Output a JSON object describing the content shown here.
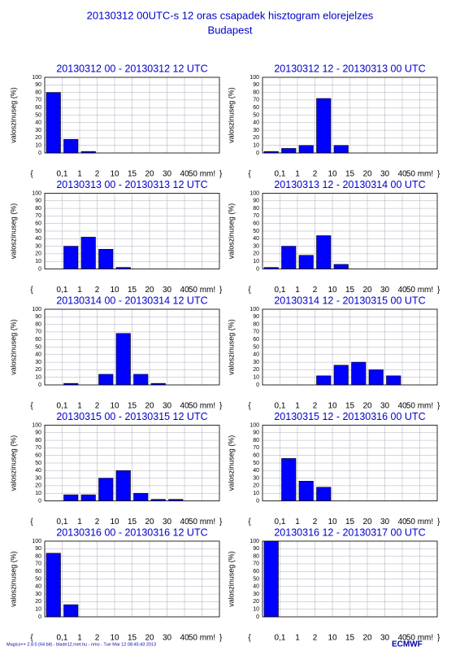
{
  "title": "20130312 00UTC-s 12 oras csapadek hisztogram elorejelzes",
  "subtitle": "Budapest",
  "footer": "Magics++ 2.8.0 (64 bit) - blade12.met.hu - nmo - Tue Mar 12 08:45:43 2013",
  "logo": "ECMWF",
  "chart_data": [
    {
      "type": "histogram",
      "title": "20130312 00 - 20130312 12 UTC",
      "y_label": "valoszinuseg (%)",
      "color": "#0000ff",
      "grid": true,
      "bins": [
        "{",
        "0,1",
        "1",
        "2",
        "10",
        "15",
        "20",
        "30",
        "40",
        "50 mm!",
        "}"
      ],
      "values": [
        80,
        18,
        2,
        0,
        0,
        0,
        0,
        0,
        0,
        0
      ],
      "ylim": [
        0,
        100
      ],
      "yticks": [
        0,
        10,
        20,
        30,
        40,
        50,
        60,
        70,
        80,
        90,
        100
      ]
    },
    {
      "type": "histogram",
      "title": "20130312 12 - 20130313 00 UTC",
      "y_label": "valoszinuseg (%)",
      "color": "#0000ff",
      "grid": true,
      "bins": [
        "{",
        "0,1",
        "1",
        "2",
        "10",
        "15",
        "20",
        "30",
        "40",
        "50 mm!",
        "}"
      ],
      "values": [
        2,
        6,
        10,
        72,
        10,
        0,
        0,
        0,
        0,
        0
      ],
      "ylim": [
        0,
        100
      ],
      "yticks": [
        0,
        10,
        20,
        30,
        40,
        50,
        60,
        70,
        80,
        90,
        100
      ]
    },
    {
      "type": "histogram",
      "title": "20130313 00 - 20130313 12 UTC",
      "y_label": "valoszinuseg (%)",
      "color": "#0000ff",
      "grid": true,
      "bins": [
        "{",
        "0,1",
        "1",
        "2",
        "10",
        "15",
        "20",
        "30",
        "40",
        "50 mm!",
        "}"
      ],
      "values": [
        0,
        30,
        42,
        26,
        2,
        0,
        0,
        0,
        0,
        0
      ],
      "ylim": [
        0,
        100
      ],
      "yticks": [
        0,
        10,
        20,
        30,
        40,
        50,
        60,
        70,
        80,
        90,
        100
      ]
    },
    {
      "type": "histogram",
      "title": "20130313 12 - 20130314 00 UTC",
      "y_label": "valoszinuseg (%)",
      "color": "#0000ff",
      "grid": true,
      "bins": [
        "{",
        "0,1",
        "1",
        "2",
        "10",
        "15",
        "20",
        "30",
        "40",
        "50 mm!",
        "}"
      ],
      "values": [
        2,
        30,
        18,
        44,
        6,
        0,
        0,
        0,
        0,
        0
      ],
      "ylim": [
        0,
        100
      ],
      "yticks": [
        0,
        10,
        20,
        30,
        40,
        50,
        60,
        70,
        80,
        90,
        100
      ]
    },
    {
      "type": "histogram",
      "title": "20130314 00 - 20130314 12 UTC",
      "y_label": "valoszinuseg (%)",
      "color": "#0000ff",
      "grid": true,
      "bins": [
        "{",
        "0,1",
        "1",
        "2",
        "10",
        "15",
        "20",
        "30",
        "40",
        "50 mm!",
        "}"
      ],
      "values": [
        0,
        2,
        0,
        14,
        68,
        14,
        2,
        0,
        0,
        0
      ],
      "ylim": [
        0,
        100
      ],
      "yticks": [
        0,
        10,
        20,
        30,
        40,
        50,
        60,
        70,
        80,
        90,
        100
      ]
    },
    {
      "type": "histogram",
      "title": "20130314 12 - 20130315 00 UTC",
      "y_label": "valoszinuseg (%)",
      "color": "#0000ff",
      "grid": true,
      "bins": [
        "{",
        "0,1",
        "1",
        "2",
        "10",
        "15",
        "20",
        "30",
        "40",
        "50 mm!",
        "}"
      ],
      "values": [
        0,
        0,
        0,
        12,
        26,
        30,
        20,
        12,
        0,
        0
      ],
      "ylim": [
        0,
        100
      ],
      "yticks": [
        0,
        10,
        20,
        30,
        40,
        50,
        60,
        70,
        80,
        90,
        100
      ]
    },
    {
      "type": "histogram",
      "title": "20130315 00 - 20130315 12 UTC",
      "y_label": "valoszinuseg (%)",
      "color": "#0000ff",
      "grid": true,
      "bins": [
        "{",
        "0,1",
        "1",
        "2",
        "10",
        "15",
        "20",
        "30",
        "40",
        "50 mm!",
        "}"
      ],
      "values": [
        0,
        8,
        8,
        30,
        40,
        10,
        2,
        2,
        0,
        0
      ],
      "ylim": [
        0,
        100
      ],
      "yticks": [
        0,
        10,
        20,
        30,
        40,
        50,
        60,
        70,
        80,
        90,
        100
      ]
    },
    {
      "type": "histogram",
      "title": "20130315 12 - 20130316 00 UTC",
      "y_label": "valoszinuseg (%)",
      "color": "#0000ff",
      "grid": true,
      "bins": [
        "{",
        "0,1",
        "1",
        "2",
        "10",
        "15",
        "20",
        "30",
        "40",
        "50 mm!",
        "}"
      ],
      "values": [
        0,
        56,
        26,
        18,
        0,
        0,
        0,
        0,
        0,
        0
      ],
      "ylim": [
        0,
        100
      ],
      "yticks": [
        0,
        10,
        20,
        30,
        40,
        50,
        60,
        70,
        80,
        90,
        100
      ]
    },
    {
      "type": "histogram",
      "title": "20130316 00 - 20130316 12 UTC",
      "y_label": "valoszinuseg (%)",
      "color": "#0000ff",
      "grid": true,
      "bins": [
        "{",
        "0,1",
        "1",
        "2",
        "10",
        "15",
        "20",
        "30",
        "40",
        "50 mm!",
        "}"
      ],
      "values": [
        84,
        16,
        0,
        0,
        0,
        0,
        0,
        0,
        0,
        0
      ],
      "ylim": [
        0,
        100
      ],
      "yticks": [
        0,
        10,
        20,
        30,
        40,
        50,
        60,
        70,
        80,
        90,
        100
      ]
    },
    {
      "type": "histogram",
      "title": "20130316 12 - 20130317 00 UTC",
      "y_label": "valoszinuseg (%)",
      "color": "#0000ff",
      "grid": true,
      "bins": [
        "{",
        "0,1",
        "1",
        "2",
        "10",
        "15",
        "20",
        "30",
        "40",
        "50 mm!",
        "}"
      ],
      "values": [
        100,
        0,
        0,
        0,
        0,
        0,
        0,
        0,
        0,
        0
      ],
      "ylim": [
        0,
        100
      ],
      "yticks": [
        0,
        10,
        20,
        30,
        40,
        50,
        60,
        70,
        80,
        90,
        100
      ]
    }
  ]
}
